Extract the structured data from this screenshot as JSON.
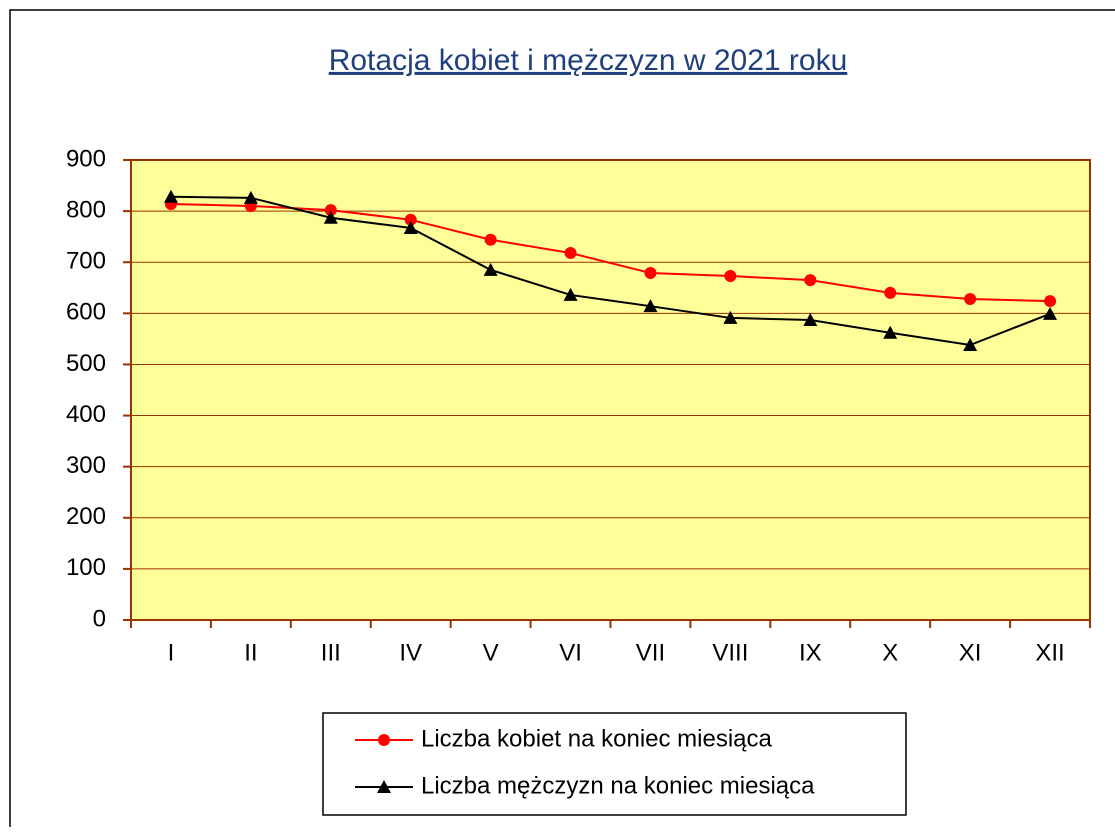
{
  "chart_data": {
    "type": "line",
    "title": "Rotacja kobiet i mężczyzn w 2021 roku",
    "categories": [
      "I",
      "II",
      "III",
      "IV",
      "V",
      "VI",
      "VII",
      "VIII",
      "IX",
      "X",
      "XI",
      "XII"
    ],
    "series": [
      {
        "name": "Liczba kobiet na koniec miesiąca",
        "color": "#ff0000",
        "marker": "circle",
        "values": [
          814,
          810,
          802,
          783,
          744,
          718,
          679,
          673,
          665,
          640,
          628,
          624
        ]
      },
      {
        "name": "Liczba mężczyzn na koniec miesiąca",
        "color": "#000000",
        "marker": "triangle",
        "values": [
          828,
          826,
          787,
          767,
          685,
          636,
          614,
          591,
          587,
          562,
          538,
          599
        ]
      }
    ],
    "ylim": [
      0,
      900
    ],
    "yticks": [
      0,
      100,
      200,
      300,
      400,
      500,
      600,
      700,
      800,
      900
    ],
    "grid": true,
    "legend": "bottom"
  }
}
